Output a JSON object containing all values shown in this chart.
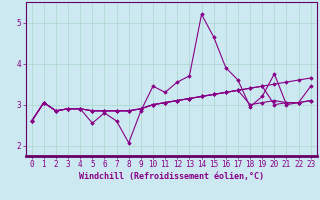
{
  "xlabel": "Windchill (Refroidissement éolien,°C)",
  "ylabel": "",
  "bg_color": "#cce8f0",
  "line_color": "#880088",
  "xlim": [
    -0.5,
    23.5
  ],
  "ylim": [
    1.75,
    5.5
  ],
  "yticks": [
    2,
    3,
    4,
    5
  ],
  "xticks": [
    0,
    1,
    2,
    3,
    4,
    5,
    6,
    7,
    8,
    9,
    10,
    11,
    12,
    13,
    14,
    15,
    16,
    17,
    18,
    19,
    20,
    21,
    22,
    23
  ],
  "series": [
    [
      2.6,
      3.05,
      2.85,
      2.9,
      2.9,
      2.55,
      2.8,
      2.6,
      2.07,
      2.85,
      3.45,
      3.3,
      3.55,
      3.7,
      5.2,
      4.65,
      3.9,
      3.6,
      2.95,
      3.2,
      3.75,
      3.0,
      3.05,
      3.45
    ],
    [
      2.6,
      3.05,
      2.85,
      2.9,
      2.9,
      2.85,
      2.85,
      2.85,
      2.85,
      2.9,
      3.0,
      3.05,
      3.1,
      3.15,
      3.2,
      3.25,
      3.3,
      3.35,
      3.4,
      3.45,
      3.5,
      3.55,
      3.6,
      3.65
    ],
    [
      2.6,
      3.05,
      2.85,
      2.9,
      2.9,
      2.85,
      2.85,
      2.85,
      2.85,
      2.9,
      3.0,
      3.05,
      3.1,
      3.15,
      3.2,
      3.25,
      3.3,
      3.35,
      3.0,
      3.05,
      3.1,
      3.05,
      3.05,
      3.1
    ],
    [
      2.6,
      3.05,
      2.85,
      2.9,
      2.9,
      2.85,
      2.85,
      2.85,
      2.85,
      2.9,
      3.0,
      3.05,
      3.1,
      3.15,
      3.2,
      3.25,
      3.3,
      3.35,
      3.4,
      3.45,
      3.0,
      3.05,
      3.05,
      3.1
    ]
  ],
  "grid_color": "#aad8cc",
  "marker": "D",
  "markersize": 1.8,
  "linewidth": 0.8,
  "xlabel_fontsize": 6,
  "tick_fontsize": 5.5,
  "spine_color": "#660066",
  "bottom_spine_width": 2.0
}
